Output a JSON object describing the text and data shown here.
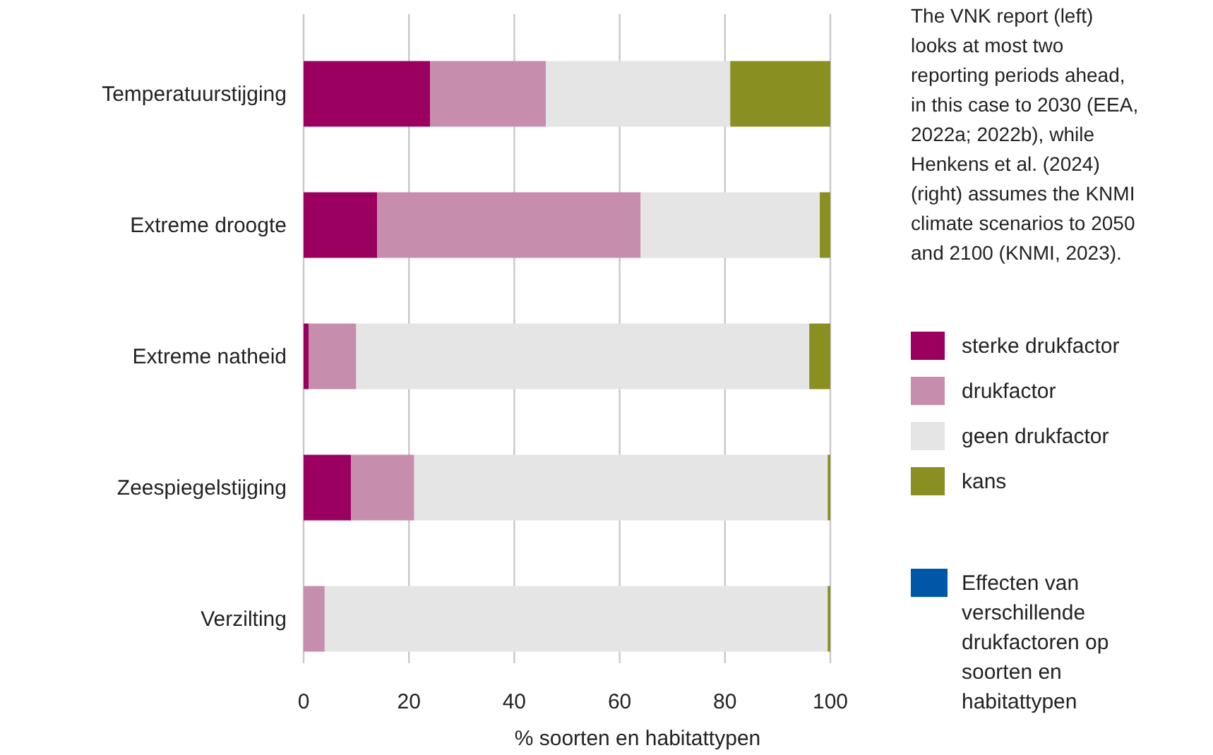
{
  "chart_data": {
    "type": "bar",
    "orientation": "horizontal",
    "stacked": true,
    "categories": [
      "Temperatuurstijging",
      "Extreme droogte",
      "Extreme natheid",
      "Zeespiegelstijging",
      "Verzilting"
    ],
    "series": [
      {
        "name": "sterke drukfactor",
        "color": "#9b0060",
        "values": [
          24,
          14,
          1,
          9,
          0
        ]
      },
      {
        "name": "drukfactor",
        "color": "#c68dad",
        "values": [
          22,
          50,
          9,
          12,
          4
        ]
      },
      {
        "name": "geen drukfactor",
        "color": "#e5e5e5",
        "values": [
          35,
          34,
          86,
          78.5,
          95.5
        ]
      },
      {
        "name": "kans",
        "color": "#8a8f22",
        "values": [
          19,
          2,
          4,
          0.5,
          0.5
        ]
      }
    ],
    "xlabel": "% soorten en habitattypen",
    "xlim": [
      0,
      100
    ],
    "xticks": [
      0,
      20,
      40,
      60,
      80,
      100
    ],
    "grid": "x",
    "legend": "right",
    "annotations": [
      "The VNK report (left) looks at most two reporting periods ahead, in this case to 2030 (EEA, 2022a; 2022b), while Henkens et al. (2024) (right) assumes the KNMI climate scenarios to 2050 and 2100 (KNMI, 2023).",
      "Effecten van verschillende drukfactoren op soorten en habitattypen"
    ]
  }
}
